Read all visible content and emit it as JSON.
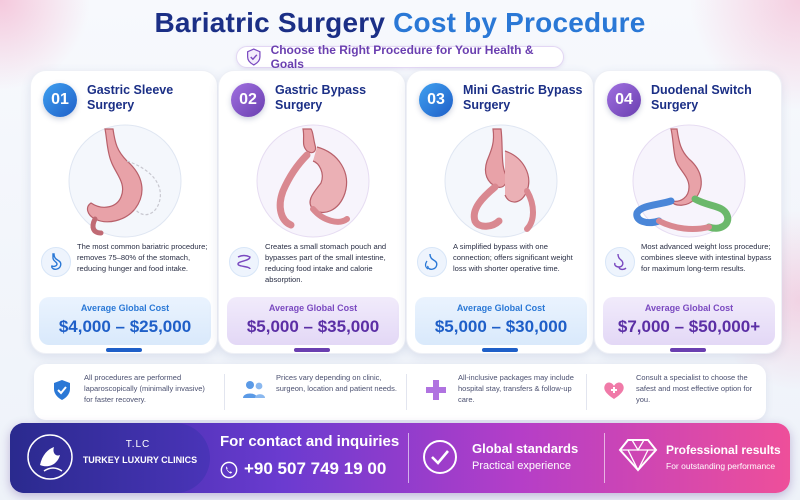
{
  "title": {
    "part1": "Bariatric Surgery",
    "part2": "Cost by Procedure"
  },
  "subtitle": "Choose the Right Procedure for Your Health & Goals",
  "procedures": [
    {
      "number": "01",
      "name": "Gastric Sleeve Surgery",
      "description": "The most common bariatric procedure; removes 75–80% of the stomach, reducing hunger and food intake.",
      "cost_label": "Average Global Cost",
      "cost": "$4,000 – $25,000",
      "accent": "#1f5fc8"
    },
    {
      "number": "02",
      "name": "Gastric Bypass Surgery",
      "description": "Creates a small stomach pouch and bypasses part of the small intestine, reducing food intake and calorie absorption.",
      "cost_label": "Average Global Cost",
      "cost": "$5,000 – $35,000",
      "accent": "#6a3fb0"
    },
    {
      "number": "03",
      "name": "Mini Gastric Bypass Surgery",
      "description": "A simplified bypass with one connection; offers significant weight loss with shorter operative time.",
      "cost_label": "Average Global Cost",
      "cost": "$5,000 – $30,000",
      "accent": "#1f5fc8"
    },
    {
      "number": "04",
      "name": "Duodenal Switch Surgery",
      "description": "Most advanced weight loss procedure; combines sleeve with intestinal bypass for maximum long-term results.",
      "cost_label": "Average Global Cost",
      "cost": "$7,000 – $50,000+",
      "accent": "#6a3fb0"
    }
  ],
  "info": [
    {
      "icon": "shield-check-icon",
      "text": "All procedures are performed laparoscopically (minimally invasive) for faster recovery."
    },
    {
      "icon": "people-icon",
      "text": "Prices vary depending on clinic, surgeon, location and patient needs."
    },
    {
      "icon": "medical-cross-icon",
      "text": "All-inclusive packages may include hospital stay, transfers & follow-up care."
    },
    {
      "icon": "heart-care-icon",
      "text": "Consult a specialist to choose the safest and most effective option for you."
    }
  ],
  "footer": {
    "logo_abbr": "T.LC",
    "logo_name": "TURKEY LUXURY CLINICS",
    "contact_title": "For contact and inquiries",
    "phone": "+90 507 749 19 00",
    "global_title": "Global standards",
    "global_sub": "Practical experience",
    "results_title": "Professional results",
    "results_sub": "For outstanding performance"
  }
}
